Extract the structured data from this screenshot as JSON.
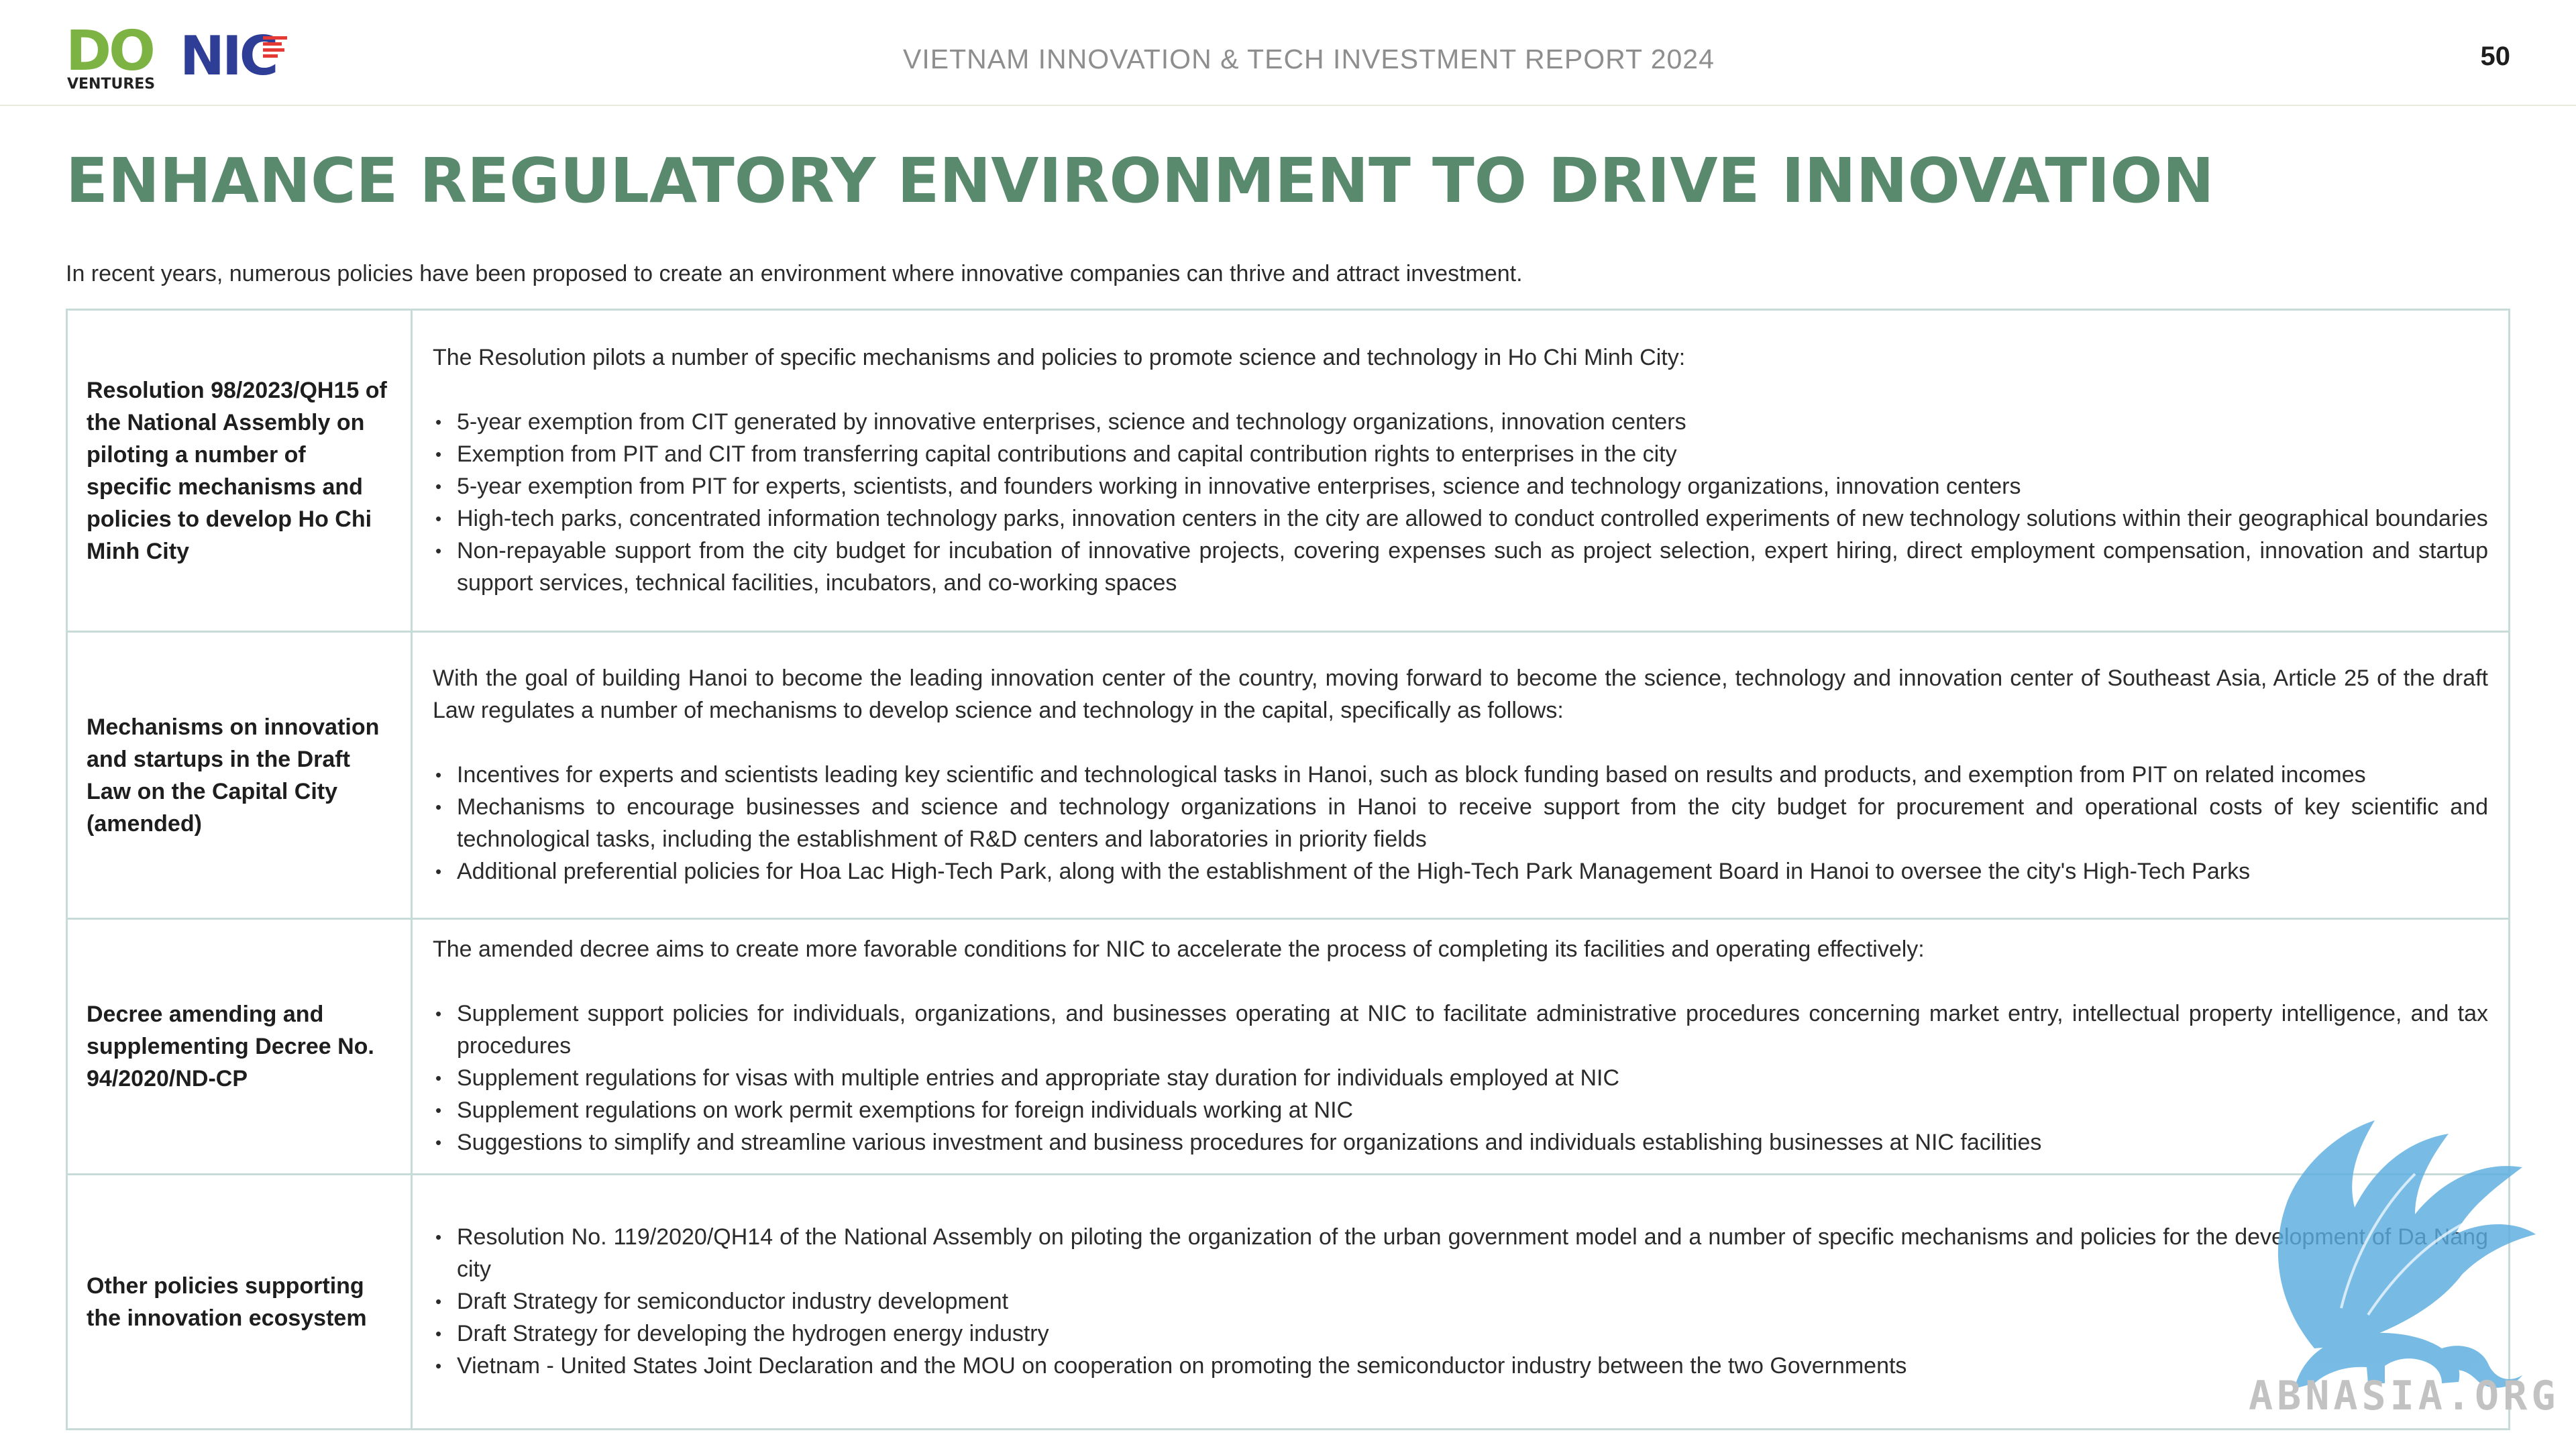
{
  "header": {
    "logo_do_text": "DO",
    "logo_ventures_text": "VENTURES",
    "logo_nic_text": "NIC",
    "report_title": "VIETNAM INNOVATION & TECH INVESTMENT REPORT 2024",
    "page_number": "50"
  },
  "main": {
    "title": "ENHANCE REGULATORY ENVIRONMENT TO DRIVE INNOVATION",
    "intro": "In recent years, numerous policies have been proposed to create an environment where innovative companies can thrive and attract investment."
  },
  "policies": [
    {
      "name": "Resolution 98/2023/QH15 of the National Assembly on piloting a number of specific mechanisms and policies to develop Ho Chi Minh City",
      "lead": "The Resolution pilots a number of specific mechanisms and policies to promote science and technology in Ho Chi Minh City:",
      "items": [
        "5-year exemption from CIT generated by innovative enterprises, science and technology organizations, innovation centers",
        "Exemption from PIT and CIT from transferring capital contributions and capital contribution rights to enterprises in the city",
        "5-year exemption from PIT for experts, scientists, and founders working in innovative enterprises, science and technology organizations, innovation centers",
        "High-tech parks, concentrated information technology parks, innovation centers in the city are allowed to conduct controlled experiments of new technology solutions within their geographical boundaries",
        "Non-repayable support from the city budget for incubation of innovative projects, covering expenses such as project selection, expert hiring, direct employment compensation, innovation and startup support services, technical facilities, incubators, and co-working spaces"
      ]
    },
    {
      "name": "Mechanisms on innovation and startups in the Draft Law on the Capital City (amended)",
      "lead": "With the goal of building Hanoi to become the leading innovation center of the country, moving forward to become the science, technology and innovation center of Southeast Asia, Article 25 of the draft Law regulates a number of mechanisms to develop science and technology in the capital, specifically as follows:",
      "items": [
        "Incentives for experts and scientists leading key scientific and technological tasks in Hanoi, such as block funding based on results and products, and exemption from PIT on related incomes",
        "Mechanisms to encourage businesses and science and technology organizations in Hanoi to receive support from the city budget for procurement and operational costs of key scientific and technological tasks, including the establishment of R&D centers and laboratories in priority fields",
        "Additional preferential policies for Hoa Lac High-Tech Park, along with the establishment of the High-Tech Park Management Board in Hanoi to oversee the city's High-Tech Parks"
      ]
    },
    {
      "name": "Decree amending and supplementing Decree No. 94/2020/ND-CP",
      "lead": "The amended decree aims to create more favorable conditions for NIC to accelerate the process of completing its facilities and operating effectively:",
      "items": [
        "Supplement support policies for individuals, organizations, and businesses operating at NIC to facilitate administrative procedures concerning market entry, intellectual property intelligence, and tax procedures",
        "Supplement regulations for visas with multiple entries and appropriate stay duration for individuals employed at NIC",
        "Supplement regulations on work permit exemptions for foreign individuals working at NIC",
        "Suggestions to simplify and streamline various investment and business procedures for organizations and individuals establishing businesses at NIC facilities"
      ]
    },
    {
      "name": "Other policies supporting the innovation ecosystem",
      "items": [
        "Resolution No. 119/2020/QH14 of the National Assembly on piloting the organization of the urban government model and a number of specific mechanisms and policies for the development of Da Nang city",
        "Draft Strategy for semiconductor industry development",
        "Draft Strategy for developing the hydrogen energy industry",
        "Vietnam - United States Joint Declaration and the MOU on cooperation on promoting the semiconductor industry between the two Governments"
      ]
    }
  ],
  "watermark": {
    "text": "ABNASIA.ORG",
    "color": "#5aade0"
  },
  "colors": {
    "title_green": "#5a8a6d",
    "table_border": "#c7dbd8",
    "do_green": "#7cb342",
    "nic_blue": "#2e3d96",
    "nic_red": "#e53935"
  }
}
